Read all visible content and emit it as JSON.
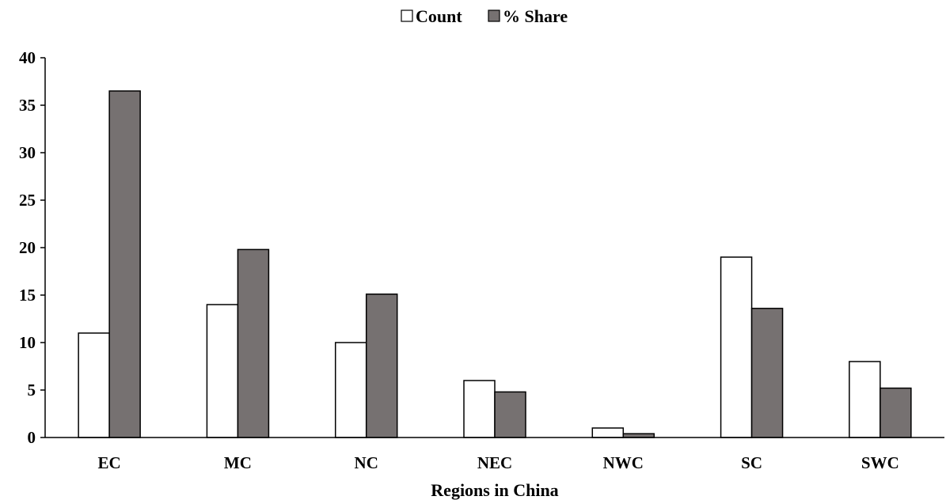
{
  "chart_data": {
    "type": "bar",
    "title": "",
    "xlabel": "Regions in China",
    "ylabel": "",
    "categories": [
      "EC",
      "MC",
      "NC",
      "NEC",
      "NWC",
      "SC",
      "SWC"
    ],
    "series": [
      {
        "name": "Count",
        "values": [
          11,
          14,
          10,
          6,
          1,
          19,
          8
        ],
        "color": "#ffffff"
      },
      {
        "name": "% Share",
        "values": [
          36.5,
          19.8,
          15.1,
          4.8,
          0.4,
          13.6,
          5.2
        ],
        "color": "#767171"
      }
    ],
    "ylim": [
      0,
      40
    ],
    "yticks": [
      0,
      5,
      10,
      15,
      20,
      25,
      30,
      35,
      40
    ],
    "grid": false,
    "legend_position": "top-center"
  }
}
